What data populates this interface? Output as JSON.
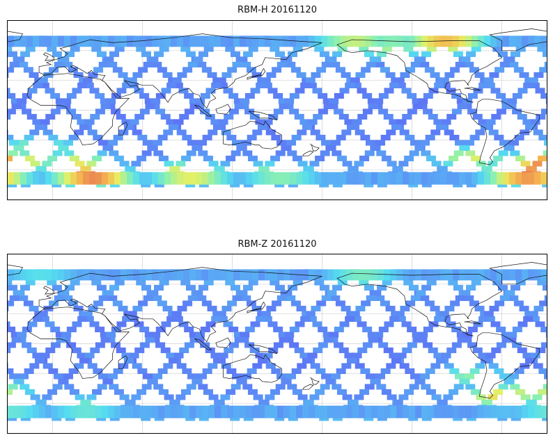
{
  "panels": [
    {
      "title": "RBM-H 20161120",
      "field": "H",
      "hotspots": [
        {
          "lon": 25,
          "lat": -62,
          "level": 0.95
        },
        {
          "lon": 15,
          "lat": -50,
          "level": 0.7
        },
        {
          "lon": 90,
          "lat": -60,
          "level": 0.75
        },
        {
          "lon": 150,
          "lat": -60,
          "level": 0.55
        },
        {
          "lon": 200,
          "lat": 70,
          "level": 0.6
        },
        {
          "lon": 225,
          "lat": 65,
          "level": 0.55
        },
        {
          "lon": 260,
          "lat": 70,
          "level": 0.8
        },
        {
          "lon": 280,
          "lat": -45,
          "level": 0.65
        },
        {
          "lon": 315,
          "lat": -60,
          "level": 1.0
        },
        {
          "lon": 330,
          "lat": -50,
          "level": 0.95
        },
        {
          "lon": 350,
          "lat": -35,
          "level": 0.55
        }
      ]
    },
    {
      "title": "RBM-Z 20161120",
      "field": "Z",
      "hotspots": [
        {
          "lon": 20,
          "lat": -60,
          "level": 0.45
        },
        {
          "lon": 300,
          "lat": -50,
          "level": 0.75
        },
        {
          "lon": 320,
          "lat": -45,
          "level": 0.65
        },
        {
          "lon": 280,
          "lat": -30,
          "level": 0.5
        },
        {
          "lon": 330,
          "lat": -60,
          "level": 0.45
        },
        {
          "lon": 205,
          "lat": 70,
          "level": 0.45
        },
        {
          "lon": 350,
          "lat": 70,
          "level": 0.35
        }
      ]
    }
  ],
  "colormap": [
    "#5f5ff5",
    "#5aa8f5",
    "#55dcf0",
    "#8cf0b0",
    "#e6f064",
    "#f5b450",
    "#e05a55"
  ],
  "map": {
    "lon_range": [
      -30,
      330
    ],
    "lat_range": [
      -90,
      90
    ],
    "data_lat_range": [
      -75,
      75
    ]
  }
}
